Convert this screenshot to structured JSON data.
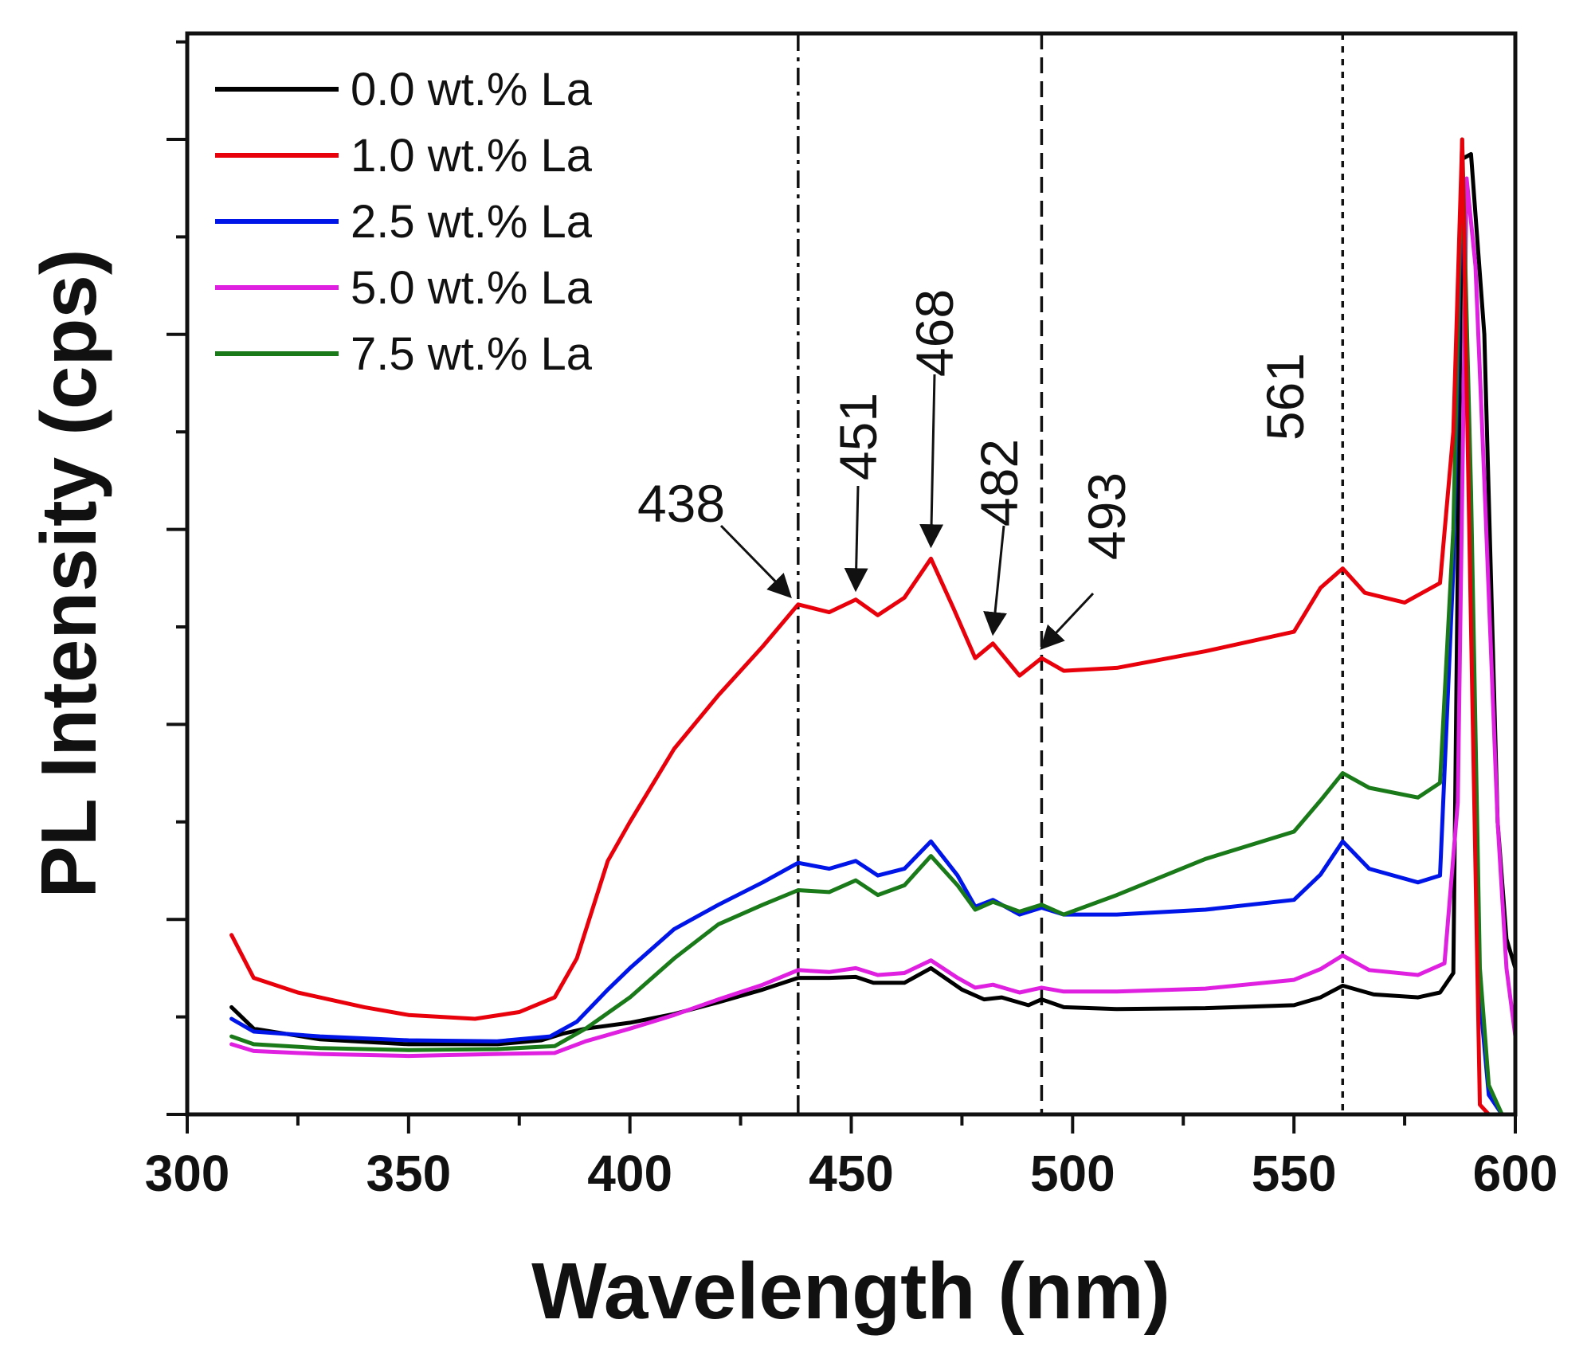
{
  "chart_data": {
    "type": "line",
    "title": "",
    "xlabel": "Wavelength (nm)",
    "ylabel": "PL Intensity (cps)",
    "xlim": [
      300,
      600
    ],
    "ylim": [
      0,
      1000
    ],
    "x_ticks": [
      300,
      350,
      400,
      450,
      500,
      550,
      600
    ],
    "x_tick_labels": [
      "300",
      "350",
      "400",
      "450",
      "500",
      "550",
      "600"
    ],
    "y_tick_labels_shown": false,
    "legend_position": "top-left",
    "series": [
      {
        "name": "0.0 wt.% La",
        "color": "#000000",
        "points": [
          [
            310,
            110
          ],
          [
            315,
            88
          ],
          [
            330,
            77
          ],
          [
            350,
            72
          ],
          [
            370,
            72
          ],
          [
            380,
            76
          ],
          [
            385,
            83
          ],
          [
            390,
            88
          ],
          [
            400,
            94
          ],
          [
            410,
            103
          ],
          [
            420,
            115
          ],
          [
            430,
            128
          ],
          [
            438,
            140
          ],
          [
            445,
            140
          ],
          [
            451,
            141
          ],
          [
            455,
            135
          ],
          [
            462,
            135
          ],
          [
            468,
            150
          ],
          [
            475,
            128
          ],
          [
            480,
            118
          ],
          [
            484,
            120
          ],
          [
            490,
            112
          ],
          [
            493,
            118
          ],
          [
            498,
            110
          ],
          [
            510,
            108
          ],
          [
            530,
            109
          ],
          [
            550,
            112
          ],
          [
            556,
            120
          ],
          [
            561,
            132
          ],
          [
            568,
            123
          ],
          [
            578,
            120
          ],
          [
            583,
            125
          ],
          [
            586,
            145
          ],
          [
            588,
            980
          ],
          [
            590,
            985
          ],
          [
            593,
            800
          ],
          [
            596,
            300
          ],
          [
            598,
            180
          ],
          [
            600,
            150
          ]
        ]
      },
      {
        "name": "1.0 wt.% La",
        "color": "#e8000b",
        "points": [
          [
            310,
            184
          ],
          [
            315,
            140
          ],
          [
            325,
            125
          ],
          [
            340,
            110
          ],
          [
            350,
            102
          ],
          [
            365,
            98
          ],
          [
            375,
            105
          ],
          [
            383,
            120
          ],
          [
            388,
            160
          ],
          [
            395,
            260
          ],
          [
            400,
            300
          ],
          [
            410,
            375
          ],
          [
            420,
            430
          ],
          [
            430,
            480
          ],
          [
            438,
            523
          ],
          [
            445,
            515
          ],
          [
            451,
            528
          ],
          [
            456,
            512
          ],
          [
            462,
            530
          ],
          [
            468,
            570
          ],
          [
            473,
            520
          ],
          [
            478,
            468
          ],
          [
            482,
            483
          ],
          [
            488,
            450
          ],
          [
            493,
            468
          ],
          [
            498,
            455
          ],
          [
            510,
            458
          ],
          [
            530,
            475
          ],
          [
            550,
            495
          ],
          [
            556,
            540
          ],
          [
            561,
            560
          ],
          [
            566,
            535
          ],
          [
            575,
            525
          ],
          [
            583,
            545
          ],
          [
            586,
            700
          ],
          [
            588,
            1000
          ],
          [
            590,
            500
          ],
          [
            592,
            10
          ],
          [
            594,
            0
          ],
          [
            600,
            0
          ]
        ]
      },
      {
        "name": "2.5 wt.% La",
        "color": "#0015e8",
        "points": [
          [
            310,
            98
          ],
          [
            315,
            85
          ],
          [
            330,
            80
          ],
          [
            350,
            76
          ],
          [
            370,
            75
          ],
          [
            382,
            80
          ],
          [
            388,
            95
          ],
          [
            395,
            128
          ],
          [
            400,
            150
          ],
          [
            410,
            190
          ],
          [
            420,
            215
          ],
          [
            430,
            238
          ],
          [
            438,
            258
          ],
          [
            445,
            252
          ],
          [
            451,
            260
          ],
          [
            456,
            245
          ],
          [
            462,
            252
          ],
          [
            468,
            280
          ],
          [
            474,
            245
          ],
          [
            478,
            213
          ],
          [
            482,
            220
          ],
          [
            488,
            205
          ],
          [
            493,
            212
          ],
          [
            498,
            205
          ],
          [
            510,
            205
          ],
          [
            530,
            210
          ],
          [
            550,
            220
          ],
          [
            556,
            246
          ],
          [
            561,
            280
          ],
          [
            567,
            252
          ],
          [
            578,
            238
          ],
          [
            583,
            245
          ],
          [
            586,
            560
          ],
          [
            588,
            980
          ],
          [
            590,
            600
          ],
          [
            592,
            120
          ],
          [
            594,
            20
          ],
          [
            597,
            0
          ],
          [
            600,
            0
          ]
        ]
      },
      {
        "name": "5.0 wt.% La",
        "color": "#e020e0",
        "points": [
          [
            310,
            72
          ],
          [
            315,
            65
          ],
          [
            330,
            62
          ],
          [
            350,
            60
          ],
          [
            370,
            62
          ],
          [
            383,
            63
          ],
          [
            390,
            75
          ],
          [
            400,
            88
          ],
          [
            410,
            102
          ],
          [
            420,
            118
          ],
          [
            430,
            133
          ],
          [
            438,
            148
          ],
          [
            445,
            146
          ],
          [
            451,
            150
          ],
          [
            456,
            143
          ],
          [
            462,
            145
          ],
          [
            468,
            158
          ],
          [
            474,
            140
          ],
          [
            478,
            130
          ],
          [
            482,
            133
          ],
          [
            488,
            125
          ],
          [
            493,
            130
          ],
          [
            498,
            126
          ],
          [
            510,
            126
          ],
          [
            530,
            129
          ],
          [
            550,
            138
          ],
          [
            556,
            149
          ],
          [
            561,
            163
          ],
          [
            567,
            148
          ],
          [
            578,
            143
          ],
          [
            584,
            155
          ],
          [
            587,
            320
          ],
          [
            589,
            960
          ],
          [
            591,
            870
          ],
          [
            593,
            650
          ],
          [
            596,
            300
          ],
          [
            598,
            150
          ],
          [
            600,
            80
          ]
        ]
      },
      {
        "name": "7.5 wt.% La",
        "color": "#1a7a1a",
        "points": [
          [
            310,
            80
          ],
          [
            315,
            72
          ],
          [
            330,
            68
          ],
          [
            350,
            66
          ],
          [
            370,
            67
          ],
          [
            383,
            70
          ],
          [
            390,
            88
          ],
          [
            400,
            120
          ],
          [
            410,
            160
          ],
          [
            420,
            195
          ],
          [
            430,
            215
          ],
          [
            438,
            230
          ],
          [
            445,
            228
          ],
          [
            451,
            240
          ],
          [
            456,
            225
          ],
          [
            462,
            235
          ],
          [
            468,
            265
          ],
          [
            474,
            235
          ],
          [
            478,
            210
          ],
          [
            482,
            218
          ],
          [
            488,
            208
          ],
          [
            493,
            215
          ],
          [
            498,
            205
          ],
          [
            510,
            225
          ],
          [
            530,
            262
          ],
          [
            550,
            290
          ],
          [
            556,
            322
          ],
          [
            561,
            350
          ],
          [
            567,
            335
          ],
          [
            578,
            325
          ],
          [
            583,
            340
          ],
          [
            586,
            600
          ],
          [
            588,
            1000
          ],
          [
            590,
            640
          ],
          [
            592,
            150
          ],
          [
            594,
            30
          ],
          [
            597,
            0
          ],
          [
            600,
            0
          ]
        ]
      }
    ],
    "reference_lines": [
      {
        "x": 438,
        "style": "dash-dot"
      },
      {
        "x": 493,
        "style": "dashed"
      },
      {
        "x": 561,
        "style": "dotted"
      }
    ],
    "annotations": [
      {
        "text": "438",
        "orientation": "horizontal",
        "arrow_to": [
          438,
          523
        ]
      },
      {
        "text": "451",
        "orientation": "vertical",
        "arrow_to": [
          451,
          530
        ]
      },
      {
        "text": "468",
        "orientation": "vertical",
        "arrow_to": [
          468,
          575
        ]
      },
      {
        "text": "482",
        "orientation": "vertical",
        "arrow_to": [
          482,
          485
        ]
      },
      {
        "text": "493",
        "orientation": "vertical",
        "arrow_to": [
          493,
          470
        ]
      },
      {
        "text": "561",
        "orientation": "vertical",
        "arrow_to": null
      }
    ]
  }
}
